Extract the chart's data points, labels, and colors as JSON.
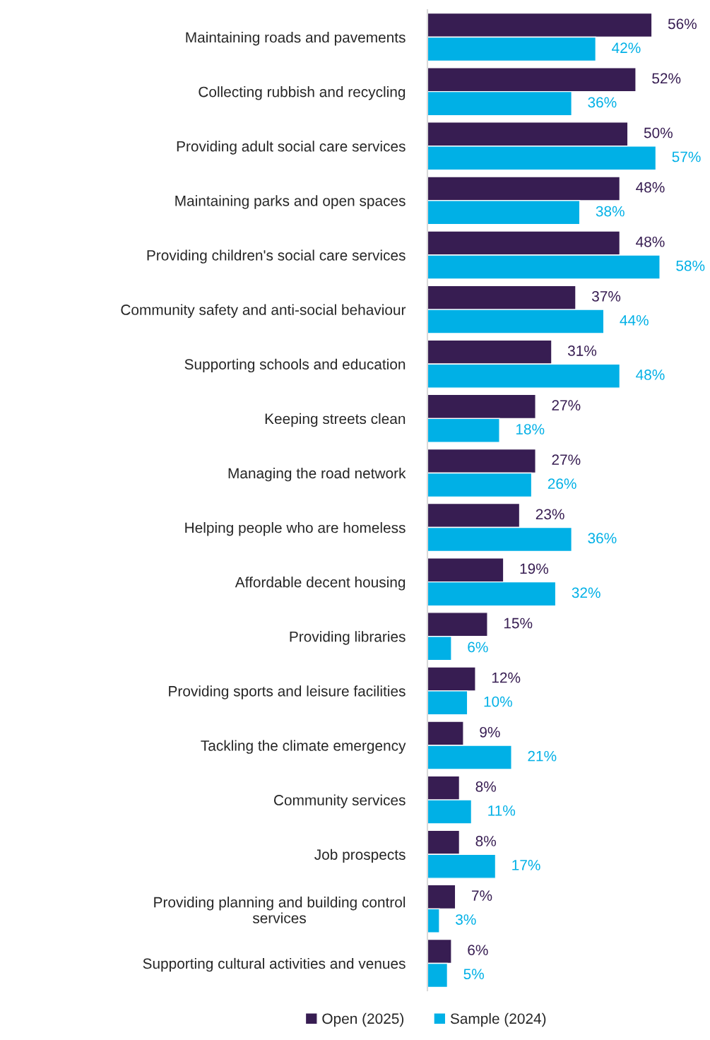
{
  "chart_data": {
    "type": "bar",
    "orientation": "horizontal",
    "legend": "bottom",
    "grid": false,
    "tick_labels": "y",
    "categories": [
      "Maintaining roads and pavements",
      "Collecting rubbish and recycling",
      "Providing adult social care services",
      "Maintaining parks and open spaces",
      "Providing children's social care services",
      "Community safety and anti-social behaviour",
      "Supporting schools and education",
      "Keeping streets clean",
      "Managing the road network",
      "Helping people who are homeless",
      "Affordable decent housing",
      "Providing libraries",
      "Providing sports and leisure facilities",
      "Tackling the climate emergency",
      "Community services",
      "Job prospects",
      "Providing planning and building control\nservices",
      "Supporting cultural activities and venues"
    ],
    "series": [
      {
        "name": "Open (2025)",
        "color": "#371d52",
        "values": [
          56,
          52,
          50,
          48,
          48,
          37,
          31,
          27,
          27,
          23,
          19,
          15,
          12,
          9,
          8,
          8,
          7,
          6
        ],
        "value_labels": [
          "56%",
          "52%",
          "50%",
          "48%",
          "48%",
          "37%",
          "31%",
          "27%",
          "27%",
          "23%",
          "19%",
          "15%",
          "12%",
          "9%",
          "8%",
          "8%",
          "7%",
          "6%"
        ]
      },
      {
        "name": "Sample (2024)",
        "color": "#00b0e6",
        "values": [
          42,
          36,
          57,
          38,
          58,
          44,
          48,
          18,
          26,
          36,
          32,
          6,
          10,
          21,
          11,
          17,
          3,
          5
        ],
        "value_labels": [
          "42%",
          "36%",
          "57%",
          "38%",
          "58%",
          "44%",
          "48%",
          "18%",
          "26%",
          "36%",
          "32%",
          "6%",
          "10%",
          "21%",
          "11%",
          "17%",
          "3%",
          "5%"
        ]
      }
    ]
  }
}
